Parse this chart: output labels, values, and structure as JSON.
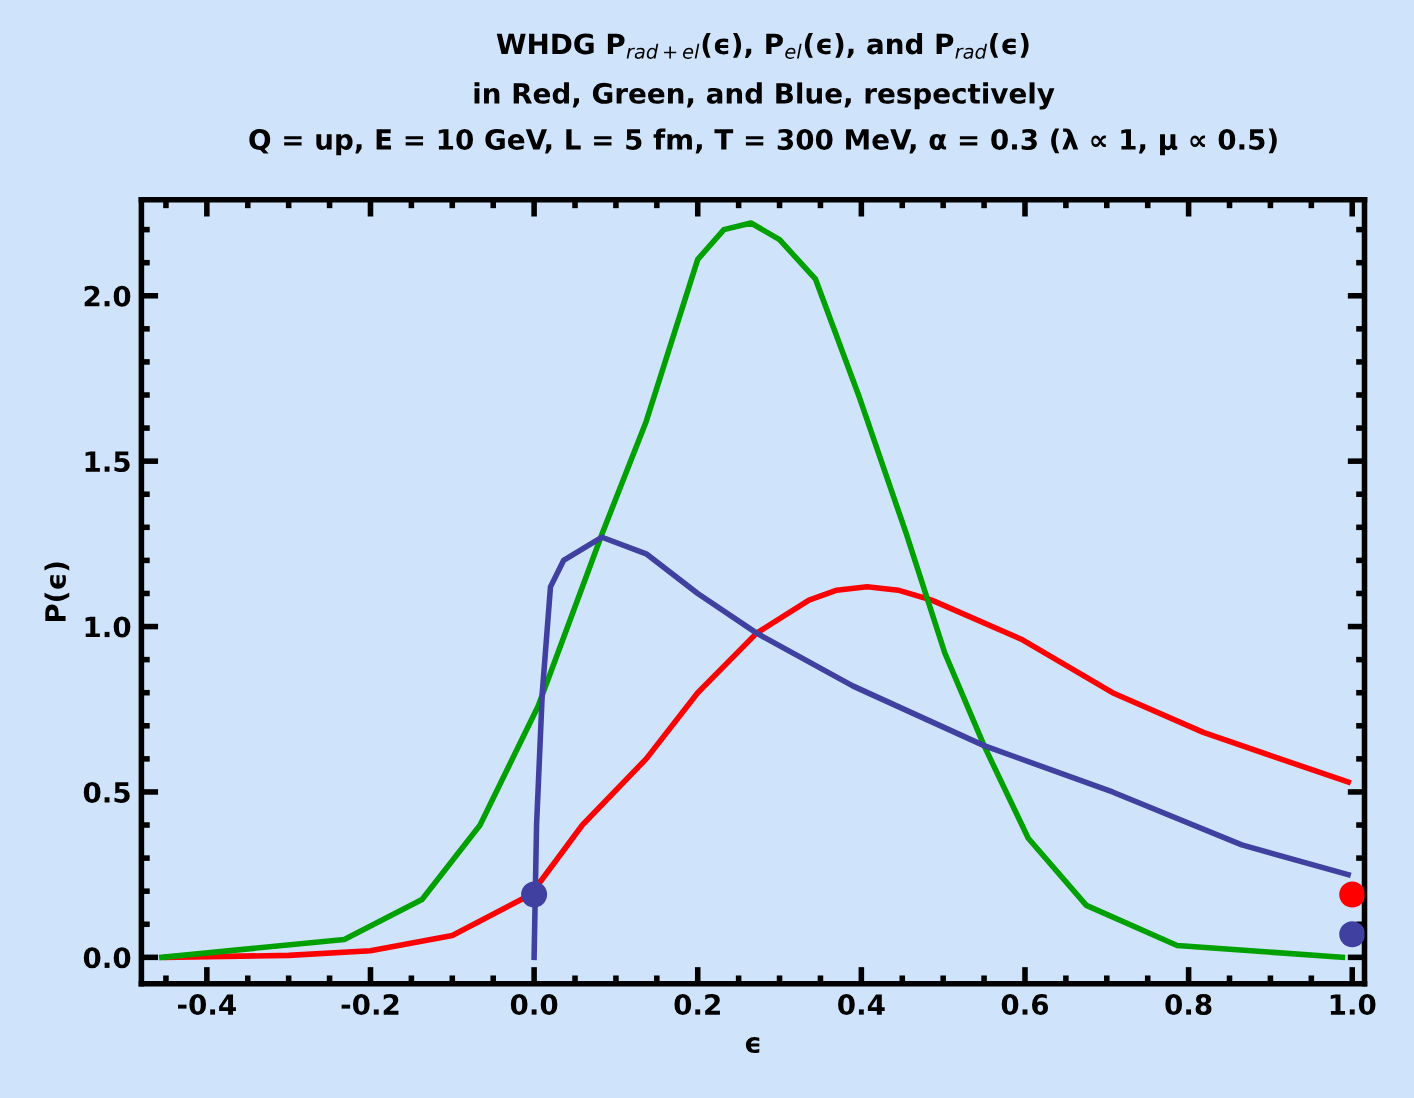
{
  "chart_data": {
    "type": "line",
    "title": "WHDG P$_{rad+el}$(ϵ), P$_{el}$(ϵ), and P$_{rad}$(ϵ)",
    "subtitle": "in Red, Green, and Blue, respectively\nQ = up, E = 10 GeV, L = 5 fm, T = 300 MeV, α = 0.3 (λ ∝ 1, μ ∝ 0.5)",
    "xlabel": "ϵ",
    "ylabel": "P(ϵ)",
    "series": [
      {
        "color": "#ff0000",
        "x": [
          -0.45,
          -0.3,
          -0.2,
          -0.1,
          -0.004,
          0.059,
          0.137,
          0.2,
          0.272,
          0.336,
          0.37,
          0.407,
          0.445,
          0.486,
          0.597,
          0.707,
          0.818,
          0.912,
          0.995
        ],
        "values": [
          0,
          0.006,
          0.02,
          0.066,
          0.19,
          0.4,
          0.6,
          0.8,
          0.98,
          1.08,
          1.11,
          1.12,
          1.11,
          1.08,
          0.96,
          0.8,
          0.68,
          0.6,
          0.53
        ]
      },
      {
        "color": "#00a000",
        "x": [
          -0.455,
          -0.232,
          -0.137,
          -0.066,
          0.005,
          0.083,
          0.137,
          0.2,
          0.232,
          0.265,
          0.3,
          0.344,
          0.398,
          0.455,
          0.502,
          0.55,
          0.604,
          0.675,
          0.786,
          0.988
        ],
        "values": [
          0,
          0.054,
          0.175,
          0.4,
          0.76,
          1.28,
          1.62,
          2.11,
          2.2,
          2.22,
          2.17,
          2.05,
          1.69,
          1.28,
          0.92,
          0.64,
          0.36,
          0.157,
          0.036,
          0
        ]
      },
      {
        "color": "#4040a0",
        "x": [
          0,
          0.003,
          0.01,
          0.02,
          0.036,
          0.083,
          0.137,
          0.2,
          0.272,
          0.39,
          0.55,
          0.707,
          0.865,
          0.995
        ],
        "values": [
          0,
          0.4,
          0.8,
          1.12,
          1.2,
          1.27,
          1.22,
          1.1,
          0.98,
          0.82,
          0.64,
          0.5,
          0.34,
          0.25
        ]
      },
      {
        "type": "scatter",
        "color": "#4040a0",
        "x": [
          0,
          1.0
        ],
        "values": [
          0.19,
          0.07
        ]
      },
      {
        "type": "scatter",
        "color": "#ff0000",
        "x": [
          1.0
        ],
        "values": [
          0.19
        ]
      }
    ],
    "xlim": [
      -0.48,
      1.015
    ],
    "ylim": [
      -0.08,
      2.29
    ],
    "xticks": [
      -0.4,
      -0.2,
      {
        "value": 0,
        "label": "0.0"
      },
      0.2,
      0.4,
      0.6,
      0.8,
      {
        "value": 1,
        "label": "1.0"
      }
    ],
    "yticks": [
      {
        "value": 0,
        "label": "0.0"
      },
      0.5,
      {
        "value": 1,
        "label": "1.0"
      },
      1.5,
      {
        "value": 2,
        "label": "2.0"
      }
    ],
    "grid": false,
    "legend": false
  }
}
